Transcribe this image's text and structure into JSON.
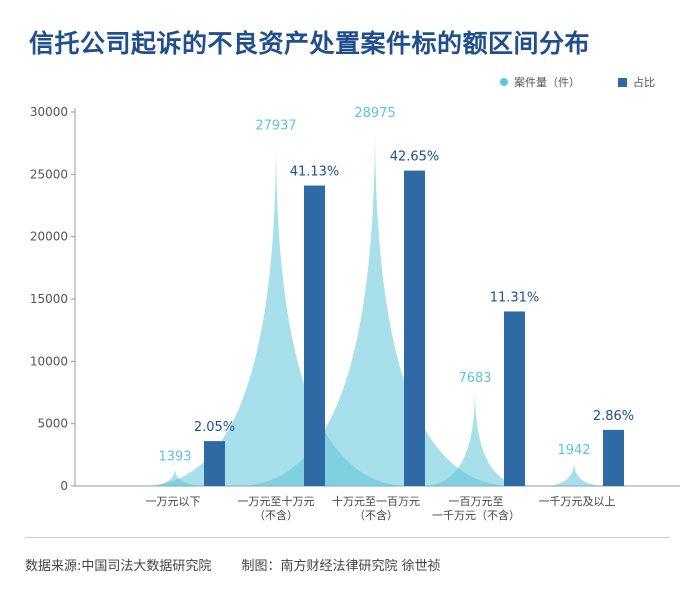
{
  "title": "信托公司起诉的不良资产处置案件标的额区间分布",
  "legend": {
    "count_label": "案件量（件）",
    "share_label": "占比"
  },
  "colors": {
    "peak": "#5ec4d8",
    "bar": "#2f6aa6",
    "title": "#1f4f8c",
    "pct": "#1f4f8c",
    "count": "#5ec4d8"
  },
  "footer": {
    "source": "数据来源:中国司法大数据研究院",
    "credit": "制图：南方财经法律研究院  徐世祯"
  },
  "chart_data": {
    "type": "bar",
    "title": "信托公司起诉的不良资产处置案件标的额区间分布",
    "ylim": [
      0,
      30000
    ],
    "yticks": [
      0,
      5000,
      10000,
      15000,
      20000,
      25000,
      30000
    ],
    "categories": [
      [
        "一万元以下"
      ],
      [
        "一万元至十万元",
        "（不含）"
      ],
      [
        "十万元至一百万元",
        "（不含）"
      ],
      [
        "一百万元至",
        "一千万元（不含）"
      ],
      [
        "一千万元及以上"
      ]
    ],
    "series": [
      {
        "name": "案件量（件）",
        "kind": "peak",
        "values": [
          1393,
          27937,
          28975,
          7683,
          1942
        ],
        "labels": [
          "1393",
          "27937",
          "28975",
          "7683",
          "1942"
        ]
      },
      {
        "name": "占比",
        "kind": "bar",
        "values": [
          2.05,
          41.13,
          42.65,
          11.31,
          2.86
        ],
        "bar_heights": [
          3600,
          24100,
          25300,
          14000,
          4500
        ],
        "labels": [
          "2.05%",
          "41.13%",
          "42.65%",
          "11.31%",
          "2.86%"
        ]
      }
    ]
  }
}
